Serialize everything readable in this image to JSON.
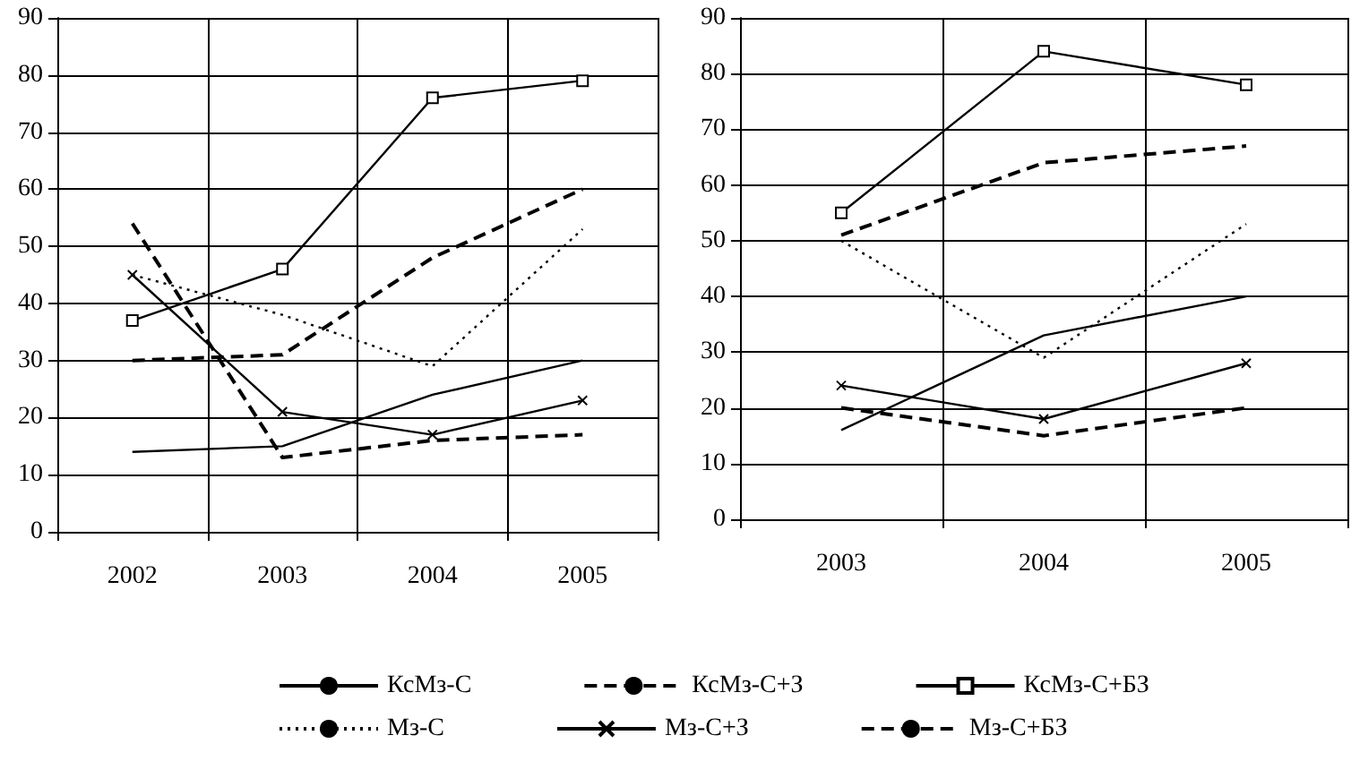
{
  "chart_data": [
    {
      "type": "line",
      "categories": [
        "2002",
        "2003",
        "2004",
        "2005"
      ],
      "ylim": [
        0,
        90
      ],
      "yticks": [
        0,
        10,
        20,
        30,
        40,
        50,
        60,
        70,
        80,
        90
      ],
      "grid": true,
      "legend": "bottom",
      "series": [
        {
          "name": "КсМз-С",
          "color": "#000000",
          "line_style": "solid",
          "marker": "none",
          "values": [
            14,
            15,
            24,
            30
          ]
        },
        {
          "name": "КсМз-С+З",
          "color": "#000000",
          "line_style": "dashed",
          "marker": "none",
          "values": [
            30,
            31,
            48,
            60
          ]
        },
        {
          "name": "КсМз-С+БЗ",
          "color": "#000000",
          "line_style": "solid",
          "marker": "square",
          "values": [
            37,
            46,
            76,
            79
          ]
        },
        {
          "name": "Мз-С",
          "color": "#000000",
          "line_style": "dotted",
          "marker": "none",
          "values": [
            45,
            38,
            29,
            53
          ]
        },
        {
          "name": "Мз-С+З",
          "color": "#000000",
          "line_style": "solid",
          "marker": "cross",
          "values": [
            45,
            21,
            17,
            23
          ]
        },
        {
          "name": "Мз-С+БЗ",
          "color": "#000000",
          "line_style": "dashed",
          "marker": "none",
          "values": [
            54,
            13,
            16,
            17
          ]
        }
      ]
    },
    {
      "type": "line",
      "categories": [
        "2003",
        "2004",
        "2005"
      ],
      "ylim": [
        0,
        90
      ],
      "yticks": [
        0,
        10,
        20,
        30,
        40,
        50,
        60,
        70,
        80,
        90
      ],
      "grid": true,
      "series": [
        {
          "color": "#000000",
          "line_style": "solid",
          "marker": "none",
          "values": [
            16,
            33,
            40
          ]
        },
        {
          "color": "#000000",
          "line_style": "dashed",
          "marker": "none",
          "values": [
            51,
            64,
            67
          ]
        },
        {
          "color": "#000000",
          "line_style": "solid",
          "marker": "square",
          "values": [
            55,
            84,
            78
          ]
        },
        {
          "color": "#000000",
          "line_style": "dotted",
          "marker": "none",
          "values": [
            50,
            29,
            53
          ]
        },
        {
          "color": "#000000",
          "line_style": "solid",
          "marker": "cross",
          "values": [
            24,
            18,
            28
          ]
        },
        {
          "color": "#000000",
          "line_style": "dashed",
          "marker": "none",
          "values": [
            20,
            15,
            20
          ]
        }
      ]
    }
  ]
}
